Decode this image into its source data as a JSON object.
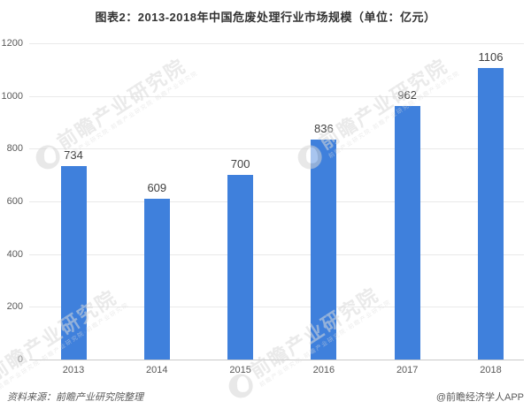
{
  "title": "图表2：2013-2018年中国危废处理行业市场规模（单位：亿元）",
  "chart_data": {
    "type": "bar",
    "categories": [
      "2013",
      "2014",
      "2015",
      "2016",
      "2017",
      "2018"
    ],
    "values": [
      734,
      609,
      700,
      836,
      962,
      1106
    ],
    "title": "图表2：2013-2018年中国危废处理行业市场规模（单位：亿元）",
    "xlabel": "",
    "ylabel": "",
    "ylim": [
      0,
      1200
    ],
    "yticks": [
      0,
      200,
      400,
      600,
      800,
      1000,
      1200
    ],
    "grid": true,
    "legend": "none",
    "bar_color": "#3f80dc"
  },
  "footer": {
    "source": "资料来源：前瞻产业研究院整理",
    "credit": "@前瞻经济学人APP"
  },
  "watermark": {
    "brand": "前瞻产业研究院",
    "subtext": "前瞻产业研究院·前瞻产业研究院·前瞻产业研究院",
    "logo": "qianzhan-eye-logo"
  },
  "colors": {
    "bar": "#3f80dc",
    "gridline": "#e9e9e9",
    "axis_line": "#c9c9c9",
    "title_text": "#333333",
    "tick_text": "#595959",
    "value_label_text": "#404040",
    "watermark_text": "#d9d9d9",
    "background": "#ffffff"
  }
}
